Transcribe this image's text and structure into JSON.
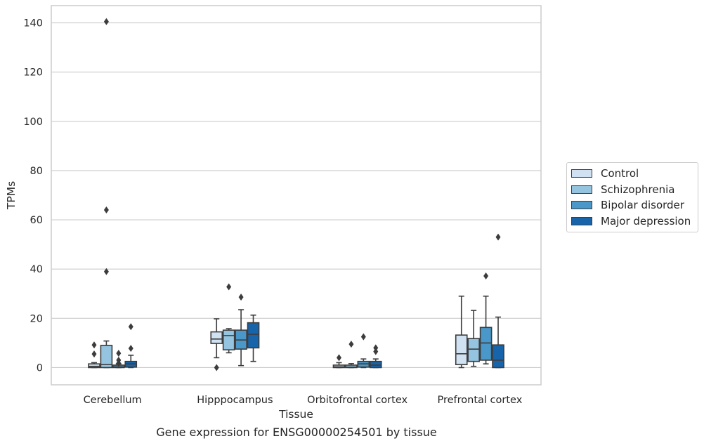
{
  "caption": "Gene expression for ENSG00000254501 by tissue",
  "chart_data": {
    "type": "box",
    "xlabel": "Tissue",
    "ylabel": "TPMs",
    "ylim": [
      -7,
      147
    ],
    "yticks": [
      0,
      20,
      40,
      60,
      80,
      100,
      120,
      140
    ],
    "grid": true,
    "legend_position": "right",
    "categories": [
      "Cerebellum",
      "Hipppocampus",
      "Orbitofrontal cortex",
      "Prefrontal cortex"
    ],
    "series": [
      {
        "name": "Control",
        "color": "#d0e1f2",
        "boxes": [
          {
            "whisker_low": 0,
            "q1": 0,
            "median": 0.5,
            "q3": 1.5,
            "whisker_high": 2,
            "outliers": [
              5.5,
              9.2
            ]
          },
          {
            "whisker_low": 4,
            "q1": 9.8,
            "median": 11.6,
            "q3": 14.5,
            "whisker_high": 19.8,
            "outliers": [
              0
            ]
          },
          {
            "whisker_low": 0,
            "q1": 0,
            "median": 0.3,
            "q3": 1,
            "whisker_high": 2,
            "outliers": [
              4
            ]
          },
          {
            "whisker_low": 0,
            "q1": 1.2,
            "median": 5.6,
            "q3": 13.2,
            "whisker_high": 29,
            "outliers": []
          }
        ]
      },
      {
        "name": "Schizophrenia",
        "color": "#94c4df",
        "boxes": [
          {
            "whisker_low": 0,
            "q1": 0,
            "median": 1.2,
            "q3": 9,
            "whisker_high": 10.8,
            "outliers": [
              39,
              64,
              140.5
            ]
          },
          {
            "whisker_low": 6,
            "q1": 7.2,
            "median": 13,
            "q3": 15.2,
            "whisker_high": 15.8,
            "outliers": [
              32.8
            ]
          },
          {
            "whisker_low": 0,
            "q1": 0,
            "median": 0.2,
            "q3": 1,
            "whisker_high": 1.6,
            "outliers": [
              9.5
            ]
          },
          {
            "whisker_low": 0.5,
            "q1": 2.5,
            "median": 7.5,
            "q3": 11.8,
            "whisker_high": 23.2,
            "outliers": []
          }
        ]
      },
      {
        "name": "Bipolar disorder",
        "color": "#4a98c9",
        "boxes": [
          {
            "whisker_low": 0,
            "q1": 0,
            "median": 0.3,
            "q3": 1,
            "whisker_high": 1.5,
            "outliers": [
              1.8,
              3,
              5.8
            ]
          },
          {
            "whisker_low": 0.8,
            "q1": 7.5,
            "median": 11.2,
            "q3": 15.2,
            "whisker_high": 23.5,
            "outliers": [
              28.6
            ]
          },
          {
            "whisker_low": 0,
            "q1": 0.2,
            "median": 1.5,
            "q3": 2.5,
            "whisker_high": 3.5,
            "outliers": [
              12.5
            ]
          },
          {
            "whisker_low": 1.5,
            "q1": 3,
            "median": 10,
            "q3": 16.3,
            "whisker_high": 29,
            "outliers": [
              37.2
            ]
          }
        ]
      },
      {
        "name": "Major depression",
        "color": "#1764ab",
        "boxes": [
          {
            "whisker_low": 0,
            "q1": 0.2,
            "median": 1.5,
            "q3": 2.5,
            "whisker_high": 5,
            "outliers": [
              7.8,
              16.6
            ]
          },
          {
            "whisker_low": 2.5,
            "q1": 8,
            "median": 13.5,
            "q3": 18.2,
            "whisker_high": 21.3,
            "outliers": []
          },
          {
            "whisker_low": 0,
            "q1": 0,
            "median": 1,
            "q3": 2.5,
            "whisker_high": 3.5,
            "outliers": [
              6.5,
              8
            ]
          },
          {
            "whisker_low": 0,
            "q1": 0,
            "median": 3,
            "q3": 9.2,
            "whisker_high": 20.5,
            "outliers": [
              53
            ]
          }
        ]
      }
    ]
  }
}
